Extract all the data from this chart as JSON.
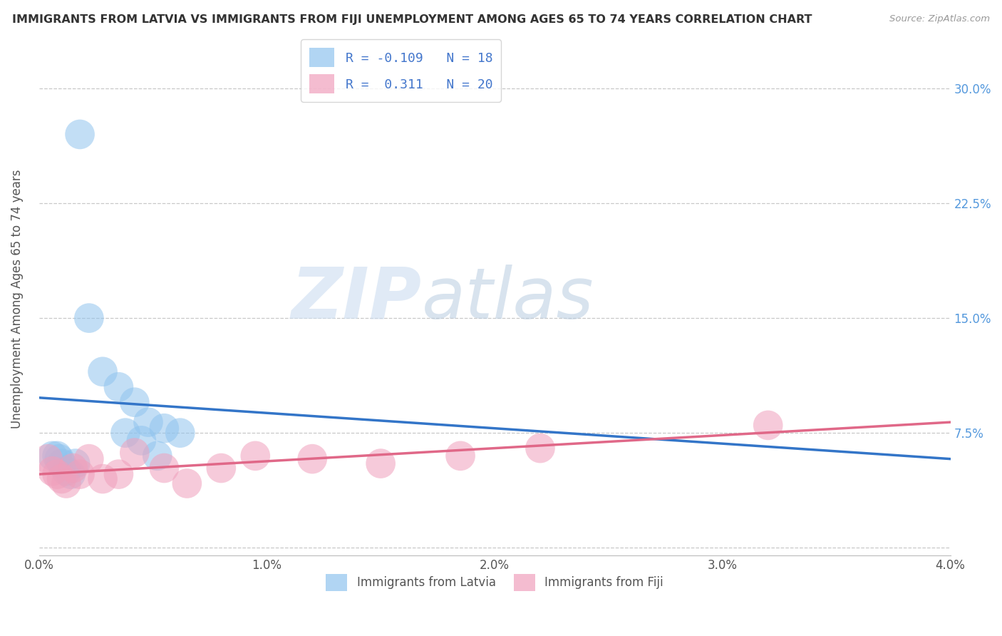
{
  "title": "IMMIGRANTS FROM LATVIA VS IMMIGRANTS FROM FIJI UNEMPLOYMENT AMONG AGES 65 TO 74 YEARS CORRELATION CHART",
  "source": "Source: ZipAtlas.com",
  "ylabel": "Unemployment Among Ages 65 to 74 years",
  "xlim": [
    0.0,
    0.04
  ],
  "ylim": [
    -0.005,
    0.33
  ],
  "yticks_right": [
    0.0,
    0.075,
    0.15,
    0.225,
    0.3
  ],
  "ytick_labels_right": [
    "",
    "7.5%",
    "15.0%",
    "22.5%",
    "30.0%"
  ],
  "xticks": [
    0.0,
    0.01,
    0.02,
    0.03,
    0.04
  ],
  "xtick_labels": [
    "0.0%",
    "1.0%",
    "2.0%",
    "3.0%",
    "4.0%"
  ],
  "grid_color": "#c8c8c8",
  "background_color": "#ffffff",
  "latvia_color": "#90C4EE",
  "fiji_color": "#F0A0BC",
  "latvia_line_color": "#3375C8",
  "fiji_line_color": "#E06888",
  "latvia_R": -0.109,
  "latvia_N": 18,
  "fiji_R": 0.311,
  "fiji_N": 20,
  "watermark_zip": "ZIP",
  "watermark_atlas": "atlas",
  "legend_label_latvia": "Immigrants from Latvia",
  "legend_label_fiji": "Immigrants from Fiji",
  "latvia_x": [
    0.0018,
    0.0022,
    0.0028,
    0.0035,
    0.0042,
    0.0048,
    0.0055,
    0.0062,
    0.0038,
    0.0045,
    0.0052,
    0.0008,
    0.001,
    0.0012,
    0.0014,
    0.0006,
    0.0009,
    0.0016
  ],
  "latvia_y": [
    0.27,
    0.15,
    0.115,
    0.105,
    0.095,
    0.082,
    0.078,
    0.075,
    0.075,
    0.07,
    0.06,
    0.06,
    0.055,
    0.05,
    0.048,
    0.06,
    0.058,
    0.055
  ],
  "fiji_x": [
    0.0004,
    0.0006,
    0.0008,
    0.001,
    0.0012,
    0.0015,
    0.0018,
    0.0022,
    0.0028,
    0.0035,
    0.0042,
    0.0055,
    0.0065,
    0.008,
    0.0095,
    0.012,
    0.015,
    0.0185,
    0.022,
    0.032
  ],
  "fiji_y": [
    0.058,
    0.05,
    0.048,
    0.045,
    0.042,
    0.052,
    0.048,
    0.058,
    0.045,
    0.048,
    0.062,
    0.052,
    0.042,
    0.052,
    0.06,
    0.058,
    0.055,
    0.06,
    0.065,
    0.08
  ],
  "latvia_trend_x0": 0.0,
  "latvia_trend_y0": 0.098,
  "latvia_trend_x1": 0.04,
  "latvia_trend_y1": 0.058,
  "fiji_trend_x0": 0.0,
  "fiji_trend_y0": 0.048,
  "fiji_trend_x1": 0.04,
  "fiji_trend_y1": 0.082
}
